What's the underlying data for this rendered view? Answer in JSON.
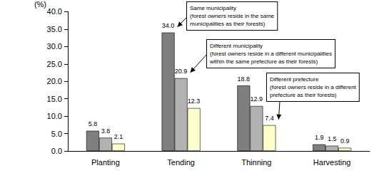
{
  "chart_data": {
    "type": "bar",
    "ylabel": "(%)",
    "categories": [
      "Planting",
      "Tending",
      "Thinning",
      "Harvesting"
    ],
    "series": [
      {
        "color": "#7f7f7f",
        "values": [
          5.8,
          34.0,
          18.8,
          1.9
        ],
        "value_labels": [
          "5.8",
          "34.0",
          "18.8",
          "1.9"
        ]
      },
      {
        "color": "#b2b2b2",
        "values": [
          3.8,
          20.9,
          12.9,
          1.5
        ],
        "value_labels": [
          "3.8",
          "20.9",
          "12.9",
          "1.5"
        ]
      },
      {
        "color": "#ffffcc",
        "values": [
          2.1,
          12.3,
          7.4,
          0.9
        ],
        "value_labels": [
          "2.1",
          "12.3",
          "7.4",
          "0.9"
        ]
      }
    ],
    "ylim": [
      0,
      40
    ],
    "yticks": [
      {
        "value": 0,
        "label": "0.0"
      },
      {
        "value": 5,
        "label": "5.0"
      },
      {
        "value": 10,
        "label": "10.0"
      },
      {
        "value": 15,
        "label": "15.0"
      },
      {
        "value": 20,
        "label": "20.0"
      },
      {
        "value": 25,
        "label": "25.0"
      },
      {
        "value": 30,
        "label": "30.0"
      },
      {
        "value": 35,
        "label": "35.0"
      },
      {
        "value": 40,
        "label": "40.0"
      }
    ],
    "grid": false,
    "data_labels": true,
    "annotations": [
      {
        "lines": [
          "Same municipality",
          "(forest owners reside in the same",
          "municipalities as their forests)"
        ],
        "series": 0,
        "category": "Tending"
      },
      {
        "lines": [
          "Different municipality",
          "(forest owners reside in a different municipalities",
          "within the same prefecture as their forests)"
        ],
        "series": 1,
        "category": "Tending"
      },
      {
        "lines": [
          "Different prefecture",
          "(forest owners reside in a different",
          "prefecture as their forests)"
        ],
        "series": 2,
        "category": "Thinning"
      }
    ]
  }
}
